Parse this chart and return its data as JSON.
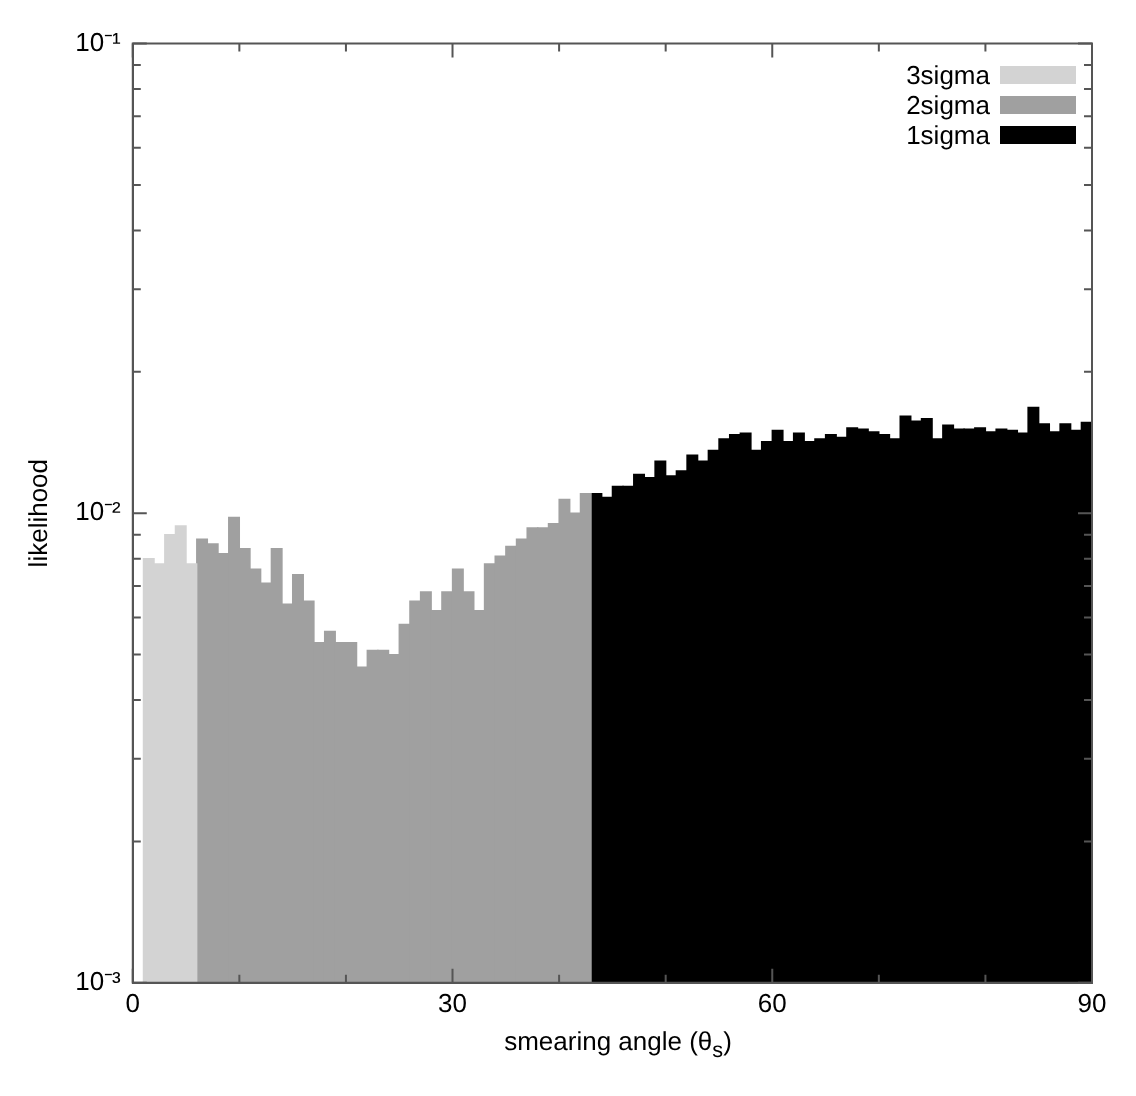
{
  "chart_data": {
    "type": "histogram",
    "xlabel": "smearing angle (θ$_{s}$)",
    "ylabel": "likelihood",
    "log": "y",
    "legend": "top right",
    "bins": [
      0,
      1,
      2,
      3,
      4,
      5,
      6,
      7,
      8,
      9,
      10,
      11,
      12,
      13,
      14,
      15,
      16,
      17,
      18,
      19,
      20,
      21,
      22,
      23,
      24,
      25,
      26,
      27,
      28,
      29,
      30,
      31,
      32,
      33,
      34,
      35,
      36,
      37,
      38,
      39,
      40,
      41,
      42,
      43,
      44,
      45,
      46,
      47,
      48,
      49,
      50,
      51,
      52,
      53,
      54,
      55,
      56,
      57,
      58,
      59,
      60,
      61,
      62,
      63,
      64,
      65,
      66,
      67,
      68,
      69,
      70,
      71,
      72,
      73,
      74,
      75,
      76,
      77,
      78,
      79,
      80,
      81,
      82,
      83,
      84,
      85,
      86,
      87,
      88,
      89,
      90
    ],
    "series": [
      {
        "name": "3sigma",
        "color": "#d3d3d3",
        "values": [
          null,
          0.008,
          0.0078,
          0.009,
          0.0094,
          0.0078,
          null,
          null,
          null,
          null,
          null,
          null,
          null,
          null,
          null,
          null,
          null,
          null,
          null,
          null,
          null,
          null,
          null,
          null,
          null,
          null,
          null,
          null,
          null,
          null,
          null,
          null,
          null,
          null,
          null,
          null,
          null,
          null,
          null,
          null,
          null,
          null,
          null,
          null,
          null,
          null,
          null,
          null,
          null,
          null,
          null,
          null,
          null,
          null,
          null,
          null,
          null,
          null,
          null,
          null,
          null,
          null,
          null,
          null,
          null,
          null,
          null,
          null,
          null,
          null,
          null,
          null,
          null,
          null,
          null,
          null,
          null,
          null,
          null,
          null,
          null,
          null,
          null,
          null,
          null,
          null,
          null,
          null,
          null,
          null
        ]
      },
      {
        "name": "2sigma",
        "color": "#a0a0a0",
        "values": [
          null,
          null,
          null,
          null,
          null,
          null,
          0.0088,
          0.0086,
          0.0082,
          0.0098,
          0.0084,
          0.0076,
          0.0071,
          0.0084,
          0.0064,
          0.0074,
          0.0065,
          0.0053,
          0.0056,
          0.0053,
          0.0053,
          0.0047,
          0.0051,
          0.0051,
          0.005,
          0.0058,
          0.0065,
          0.0068,
          0.0062,
          0.0068,
          0.0076,
          0.0068,
          0.0062,
          0.0078,
          0.0081,
          0.0085,
          0.0088,
          0.0093,
          0.0093,
          0.0095,
          0.0107,
          0.01,
          0.011,
          null,
          null,
          null,
          null,
          null,
          null,
          null,
          null,
          null,
          null,
          null,
          null,
          null,
          null,
          null,
          null,
          null,
          null,
          null,
          null,
          null,
          null,
          null,
          null,
          null,
          null,
          null,
          null,
          null,
          null,
          null,
          null,
          null,
          null,
          null,
          null,
          null,
          null,
          null,
          null,
          null,
          null,
          null,
          null,
          null,
          null,
          null
        ]
      },
      {
        "name": "1sigma",
        "color": "#000000",
        "values": [
          null,
          null,
          null,
          null,
          null,
          null,
          null,
          null,
          null,
          null,
          null,
          null,
          null,
          null,
          null,
          null,
          null,
          null,
          null,
          null,
          null,
          null,
          null,
          null,
          null,
          null,
          null,
          null,
          null,
          null,
          null,
          null,
          null,
          null,
          null,
          null,
          null,
          null,
          null,
          null,
          null,
          null,
          null,
          0.011,
          0.0108,
          0.0114,
          0.0114,
          0.0121,
          0.0119,
          0.0129,
          0.012,
          0.0123,
          0.0133,
          0.0129,
          0.0136,
          0.0144,
          0.0147,
          0.0148,
          0.0136,
          0.0142,
          0.015,
          0.0142,
          0.0148,
          0.0142,
          0.0144,
          0.0147,
          0.0145,
          0.0152,
          0.0151,
          0.0149,
          0.0147,
          0.0144,
          0.0161,
          0.0157,
          0.0159,
          0.0144,
          0.0154,
          0.0151,
          0.0151,
          0.0152,
          0.0149,
          0.0151,
          0.015,
          0.0148,
          0.0168,
          0.0155,
          0.0149,
          0.0155,
          0.015,
          0.0156
        ]
      }
    ],
    "xlim": [
      0,
      90
    ],
    "xticks": [
      0,
      {
        "value": 10,
        "label": null
      },
      {
        "value": 20,
        "label": null
      },
      30,
      {
        "value": 40,
        "label": null
      },
      {
        "value": 50,
        "label": null
      },
      60,
      {
        "value": 70,
        "label": null
      },
      {
        "value": 80,
        "label": null
      },
      90
    ],
    "ylim": [
      0.001,
      0.1
    ],
    "yticks": [
      {
        "value": 0.001,
        "label": "10⁻³"
      },
      {
        "value": 0.002,
        "label": null
      },
      {
        "value": 0.003,
        "label": null
      },
      {
        "value": 0.004,
        "label": null
      },
      {
        "value": 0.005,
        "label": null
      },
      {
        "value": 0.006,
        "label": null
      },
      {
        "value": 0.007,
        "label": null
      },
      {
        "value": 0.008,
        "label": null
      },
      {
        "value": 0.009,
        "label": null
      },
      {
        "value": 0.01,
        "label": "10⁻²"
      },
      {
        "value": 0.02,
        "label": null
      },
      {
        "value": 0.03,
        "label": null
      },
      {
        "value": 0.04,
        "label": null
      },
      {
        "value": 0.05,
        "label": null
      },
      {
        "value": 0.06,
        "label": null
      },
      {
        "value": 0.07,
        "label": null
      },
      {
        "value": 0.08,
        "label": null
      },
      {
        "value": 0.09,
        "label": null
      },
      {
        "value": 0.1,
        "label": "10⁻¹"
      }
    ]
  }
}
